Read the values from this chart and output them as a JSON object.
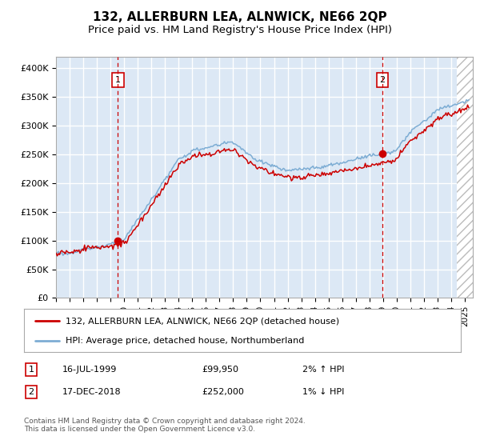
{
  "title": "132, ALLERBURN LEA, ALNWICK, NE66 2QP",
  "subtitle": "Price paid vs. HM Land Registry's House Price Index (HPI)",
  "ylim": [
    0,
    420000
  ],
  "yticks": [
    0,
    50000,
    100000,
    150000,
    200000,
    250000,
    300000,
    350000,
    400000
  ],
  "ytick_labels": [
    "£0",
    "£50K",
    "£100K",
    "£150K",
    "£200K",
    "£250K",
    "£300K",
    "£350K",
    "£400K"
  ],
  "xlim_start": 1995.0,
  "xlim_end": 2025.3,
  "background_color": "#dce8f5",
  "grid_color": "#ffffff",
  "hpi_line_color": "#7dadd4",
  "price_line_color": "#cc0000",
  "sale1_x": 1999.54,
  "sale1_y": 99950,
  "sale2_x": 2018.96,
  "sale2_y": 252000,
  "legend_line1": "132, ALLERBURN LEA, ALNWICK, NE66 2QP (detached house)",
  "legend_line2": "HPI: Average price, detached house, Northumberland",
  "table_row1": [
    "1",
    "16-JUL-1999",
    "£99,950",
    "2% ↑ HPI"
  ],
  "table_row2": [
    "2",
    "17-DEC-2018",
    "£252,000",
    "1% ↓ HPI"
  ],
  "footer": "Contains HM Land Registry data © Crown copyright and database right 2024.\nThis data is licensed under the Open Government Licence v3.0.",
  "hatch_xstart": 2024.42
}
